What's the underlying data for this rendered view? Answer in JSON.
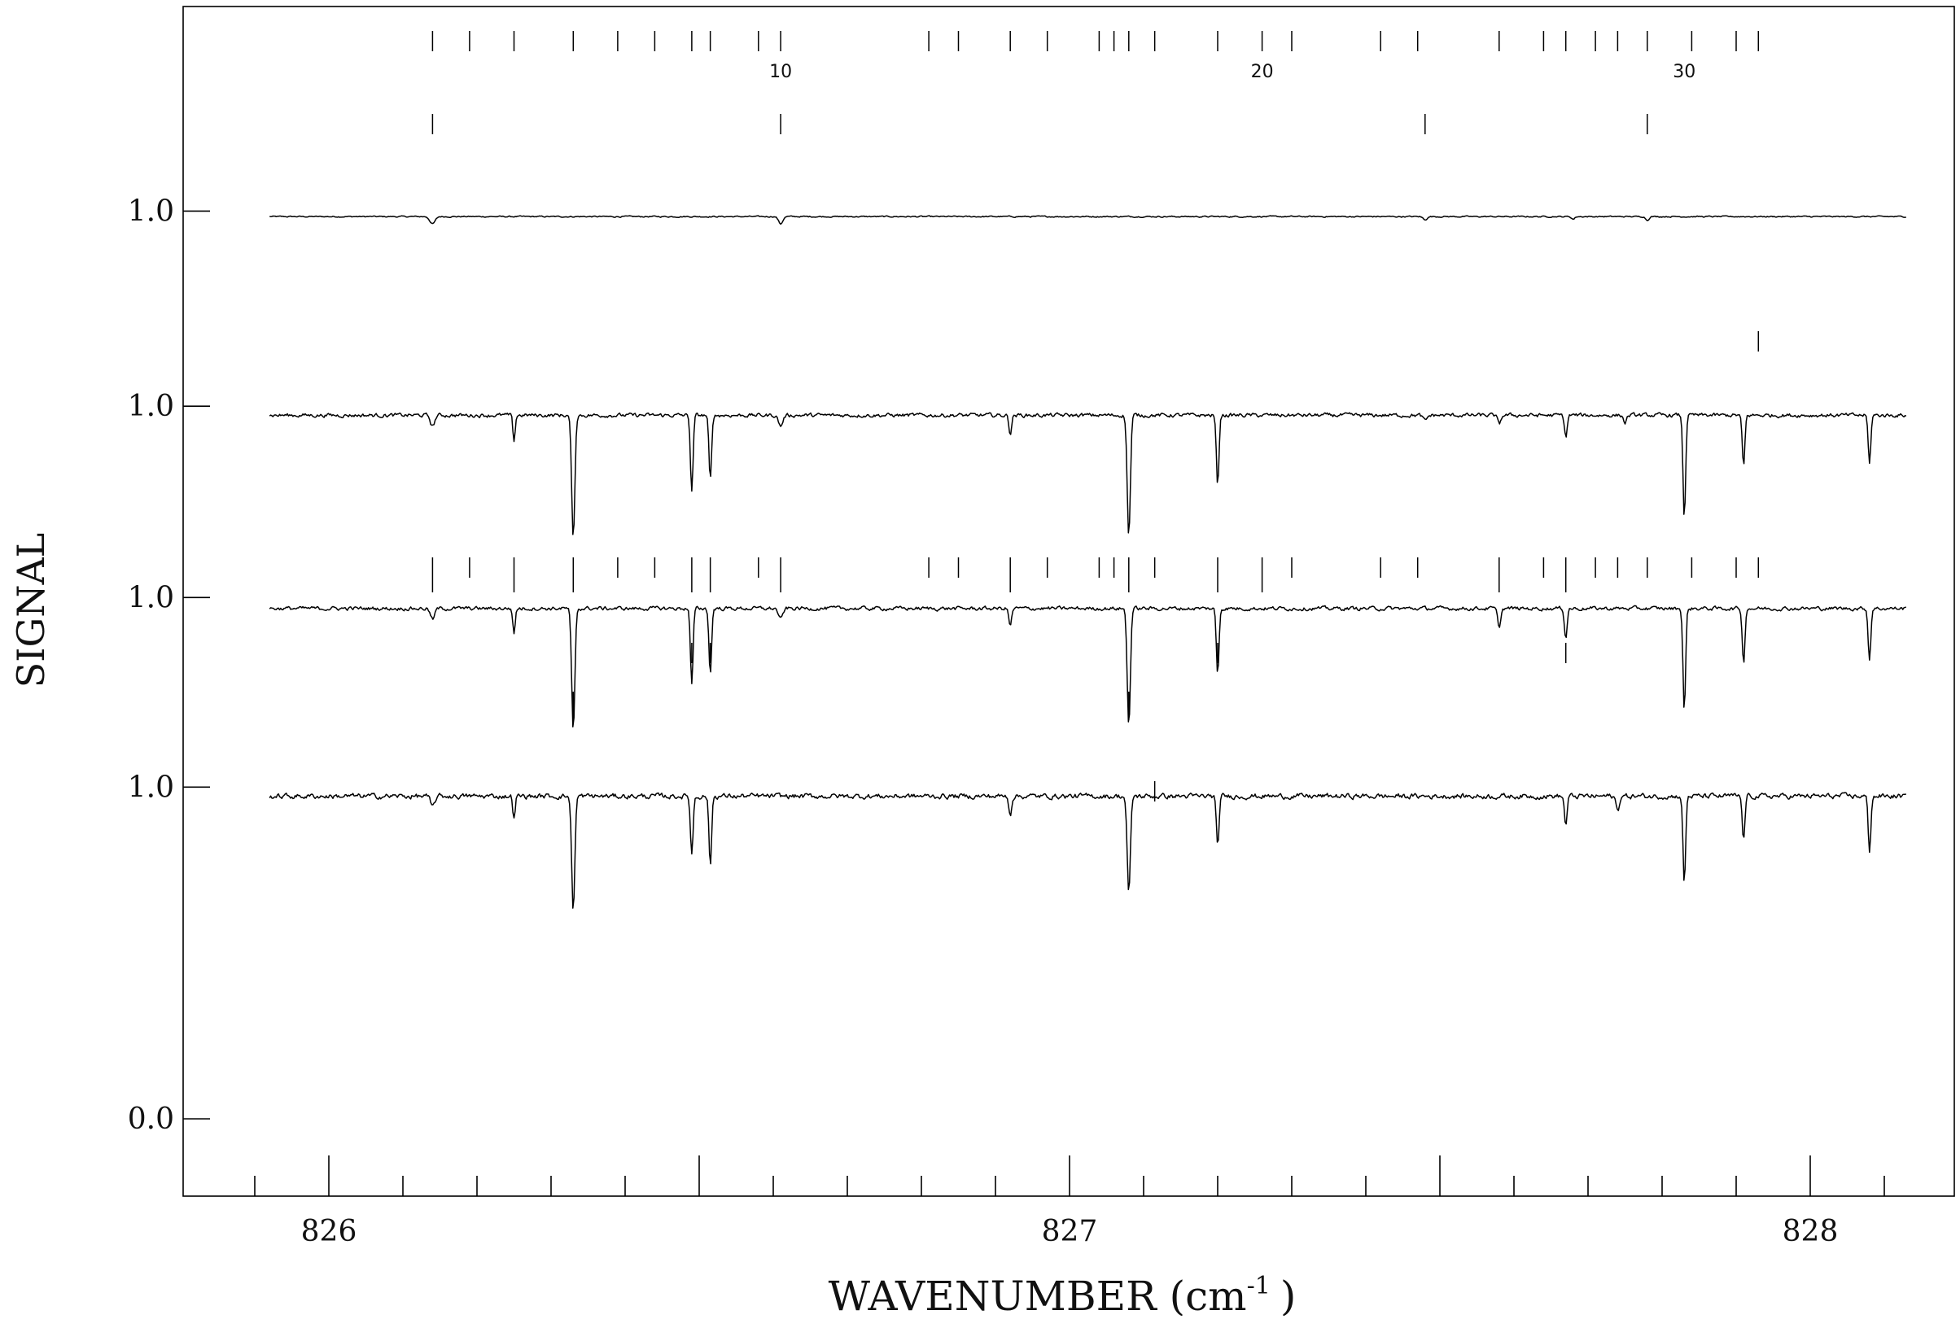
{
  "chart_data": {
    "type": "line",
    "xlabel": "WAVENUMBER (cm",
    "xlabel_exp": "-1",
    "xlabel_close": ")",
    "ylabel": "SIGNAL",
    "xlim": [
      825.8,
      828.2
    ],
    "x_ticks": [
      826,
      827,
      828
    ],
    "x_tick_labels": [
      "826",
      "827",
      "828"
    ],
    "x_minor_step": 0.1,
    "y_tick_labels": [
      "1.0",
      "1.0",
      "1.0",
      "1.0",
      "0.0"
    ],
    "grid": false,
    "series": [
      {
        "offset": 1.49,
        "baseline": 0.985,
        "noise": 0.002,
        "x_start": 825.92,
        "x_end": 828.13,
        "lines": [
          [
            826.14,
            -0.02,
            0.005
          ],
          [
            826.61,
            -0.02,
            0.004
          ],
          [
            827.48,
            -0.008,
            0.004
          ],
          [
            827.68,
            -0.007,
            0.003
          ],
          [
            827.78,
            -0.01,
            0.003
          ]
        ]
      },
      {
        "offset": 0.955,
        "baseline": 0.975,
        "noise": 0.006,
        "x_start": 825.92,
        "x_end": 828.13,
        "lines": [
          [
            826.14,
            -0.03,
            0.004
          ],
          [
            826.25,
            -0.07,
            0.0022
          ],
          [
            826.33,
            -0.34,
            0.003
          ],
          [
            826.49,
            -0.21,
            0.0025
          ],
          [
            826.515,
            -0.18,
            0.0025
          ],
          [
            826.61,
            -0.03,
            0.004
          ],
          [
            826.92,
            -0.05,
            0.0025
          ],
          [
            827.08,
            -0.33,
            0.003
          ],
          [
            827.2,
            -0.19,
            0.0025
          ],
          [
            827.48,
            -0.015,
            0.004
          ],
          [
            827.58,
            -0.025,
            0.003
          ],
          [
            827.67,
            -0.06,
            0.0025
          ],
          [
            827.75,
            -0.02,
            0.003
          ],
          [
            827.83,
            -0.28,
            0.0025
          ],
          [
            827.91,
            -0.14,
            0.0025
          ],
          [
            828.08,
            -0.13,
            0.0025
          ]
        ]
      },
      {
        "offset": 0.43,
        "baseline": 0.97,
        "noise": 0.006,
        "x_start": 825.92,
        "x_end": 828.13,
        "lines": [
          [
            826.14,
            -0.03,
            0.004
          ],
          [
            826.25,
            -0.07,
            0.0022
          ],
          [
            826.33,
            -0.34,
            0.003
          ],
          [
            826.49,
            -0.21,
            0.0025
          ],
          [
            826.515,
            -0.18,
            0.0025
          ],
          [
            826.61,
            -0.03,
            0.004
          ],
          [
            826.92,
            -0.05,
            0.0025
          ],
          [
            827.08,
            -0.32,
            0.003
          ],
          [
            827.2,
            -0.18,
            0.0025
          ],
          [
            827.58,
            -0.05,
            0.003
          ],
          [
            827.67,
            -0.08,
            0.0025
          ],
          [
            827.83,
            -0.28,
            0.0025
          ],
          [
            827.91,
            -0.15,
            0.0025
          ],
          [
            828.08,
            -0.14,
            0.0025
          ]
        ]
      },
      {
        "offset": -0.09,
        "baseline": 0.975,
        "noise": 0.008,
        "x_start": 825.92,
        "x_end": 828.13,
        "lines": [
          [
            826.14,
            -0.03,
            0.004
          ],
          [
            826.25,
            -0.06,
            0.0022
          ],
          [
            826.33,
            -0.31,
            0.003
          ],
          [
            826.49,
            -0.16,
            0.0025
          ],
          [
            826.515,
            -0.19,
            0.0025
          ],
          [
            826.92,
            -0.05,
            0.0025
          ],
          [
            827.08,
            -0.27,
            0.003
          ],
          [
            827.2,
            -0.14,
            0.0025
          ],
          [
            827.67,
            -0.08,
            0.0025
          ],
          [
            827.74,
            -0.04,
            0.003
          ],
          [
            827.83,
            -0.24,
            0.0025
          ],
          [
            827.91,
            -0.12,
            0.0025
          ],
          [
            828.08,
            -0.15,
            0.0025
          ]
        ]
      }
    ],
    "line_markers": {
      "positions": [
        826.14,
        826.19,
        826.25,
        826.33,
        826.39,
        826.44,
        826.49,
        826.515,
        826.58,
        826.61,
        826.81,
        826.85,
        826.92,
        826.97,
        827.04,
        827.06,
        827.08,
        827.115,
        827.2,
        827.26,
        827.3,
        827.42,
        827.47,
        827.58,
        827.64,
        827.67,
        827.71,
        827.74,
        827.78,
        827.84,
        827.9,
        827.93
      ],
      "number_labels": [
        {
          "x": 826.61,
          "text": "10"
        },
        {
          "x": 827.26,
          "text": "20"
        },
        {
          "x": 827.83,
          "text": "30"
        }
      ],
      "long": [
        826.14,
        826.25,
        826.33,
        826.49,
        826.515,
        826.61,
        826.92,
        827.08,
        827.2,
        827.26,
        827.58,
        827.67,
        827.83,
        827.91
      ],
      "tall": [
        826.33,
        826.49,
        826.515,
        827.08,
        827.2,
        827.67,
        827.83,
        827.91
      ],
      "row1_below": [
        826.14,
        826.61,
        827.48,
        827.78
      ],
      "row2_below": [
        827.93
      ],
      "row4_below": [
        827.115
      ]
    }
  }
}
